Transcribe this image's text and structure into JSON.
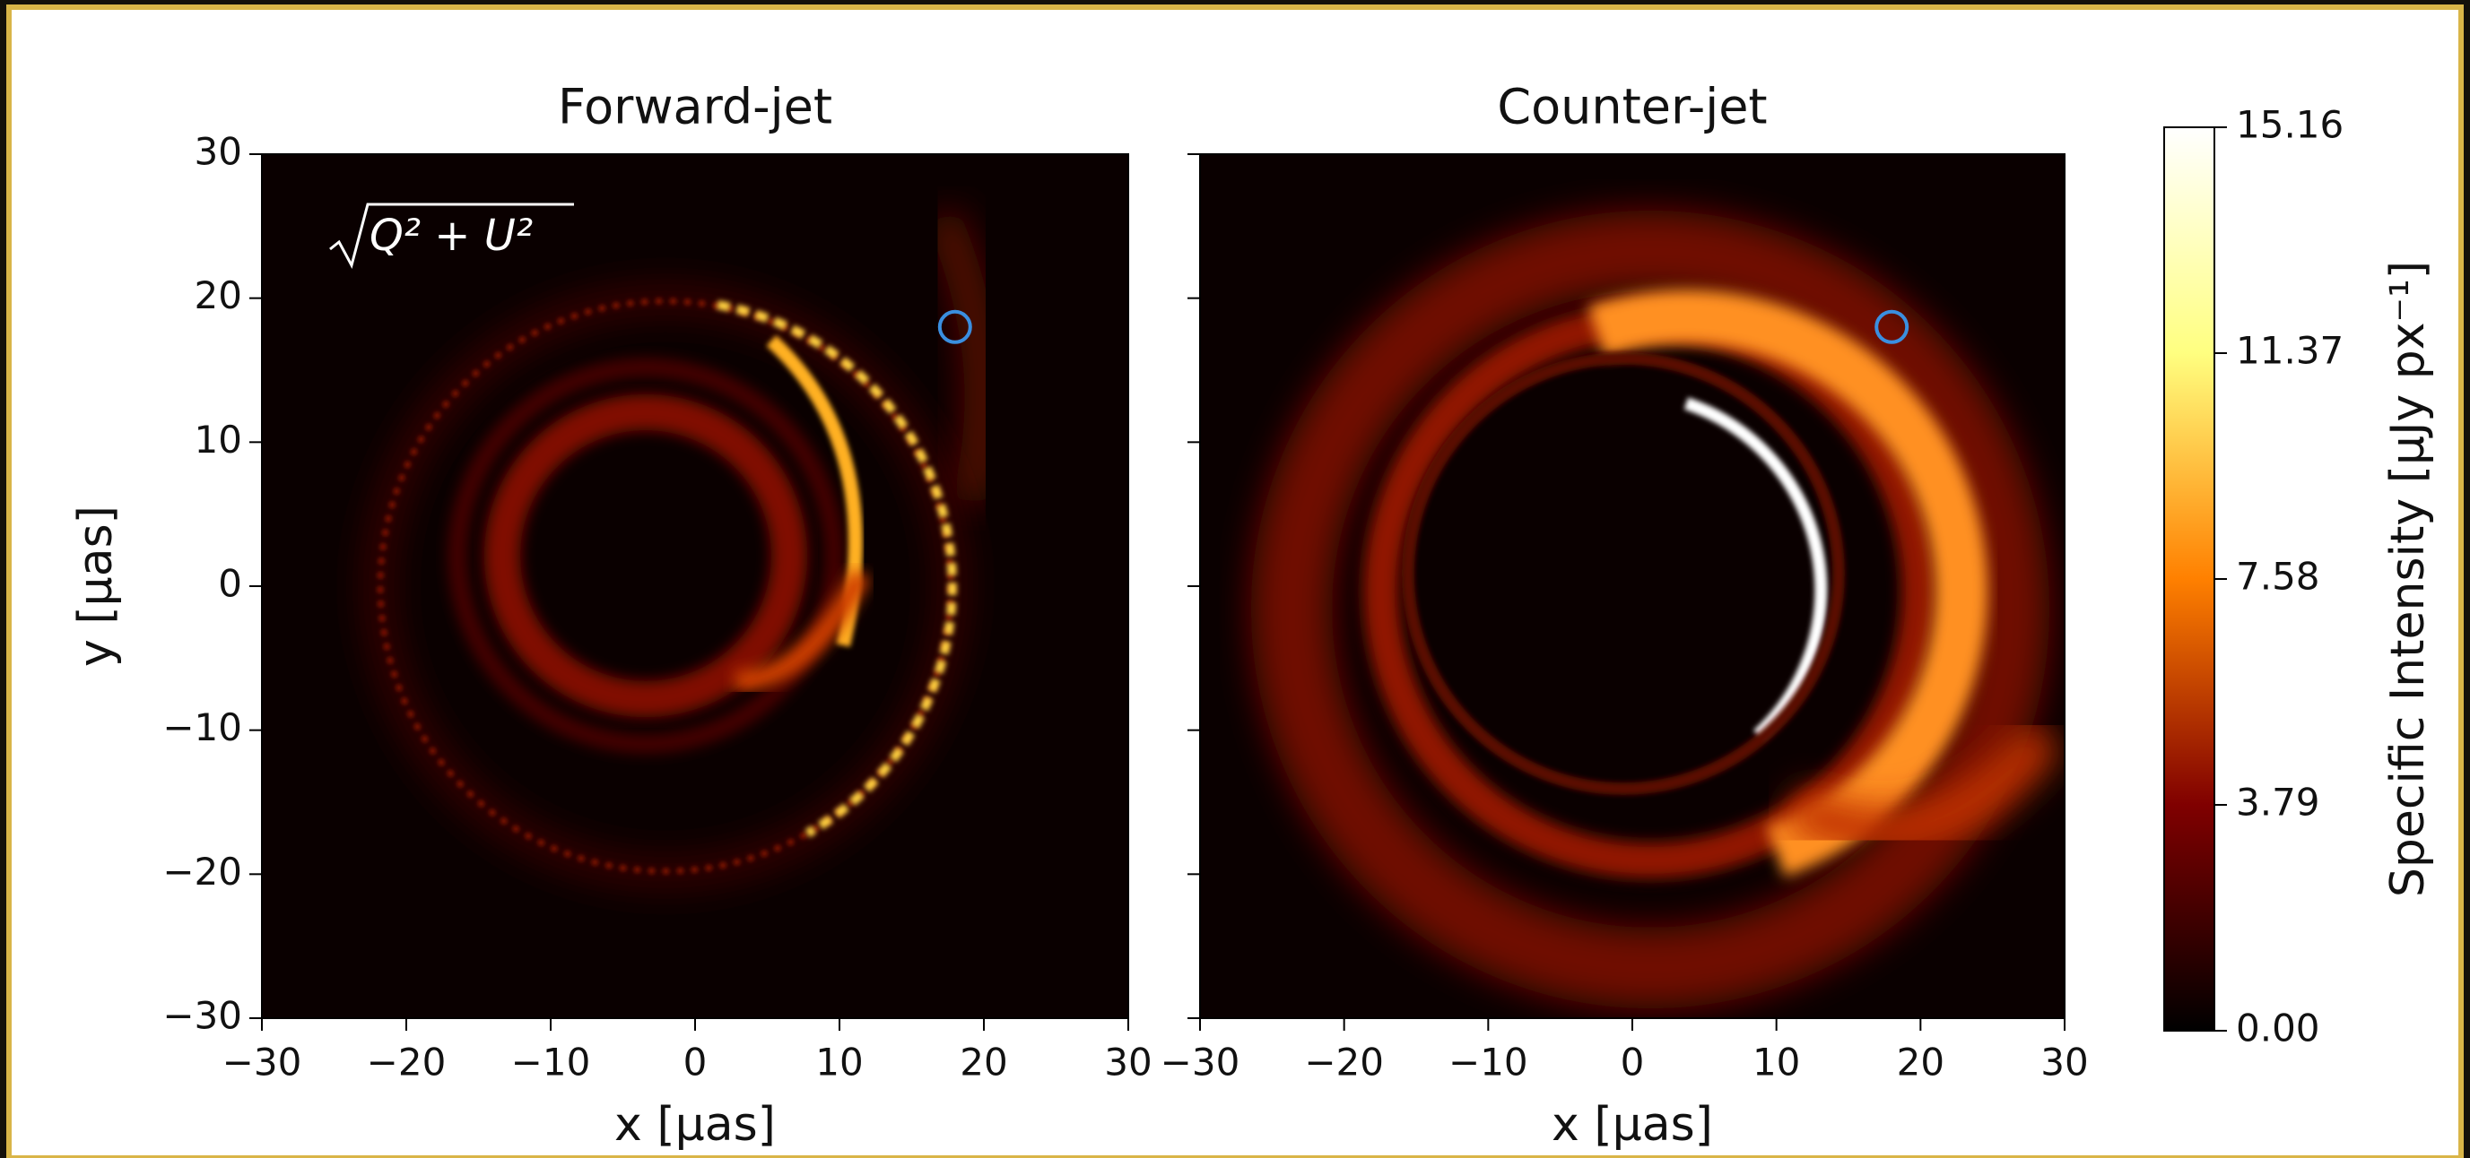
{
  "chart_data": [
    {
      "type": "heatmap",
      "title": "Forward-jet",
      "annotation": "Q² + U²",
      "xlabel": "x [μas]",
      "ylabel": "y [μas]",
      "xlim": [
        -30,
        30
      ],
      "ylim": [
        -30,
        30
      ],
      "xticks": [
        {
          "value": -30,
          "label": "−30"
        },
        {
          "value": -20,
          "label": "−20"
        },
        {
          "value": -10,
          "label": "−10"
        },
        0,
        10,
        20,
        30
      ],
      "yticks": [
        {
          "value": -30,
          "label": "−30"
        },
        {
          "value": -20,
          "label": "−20"
        },
        {
          "value": -10,
          "label": "−10"
        },
        0,
        10,
        20,
        30
      ],
      "marker": {
        "x": 18,
        "y": 18,
        "color": "#3a8fe0"
      }
    },
    {
      "type": "heatmap",
      "title": "Counter-jet",
      "xlabel": "x [μas]",
      "xlim": [
        -30,
        30
      ],
      "ylim": [
        -30,
        30
      ],
      "xticks": [
        {
          "value": -30,
          "label": "−30"
        },
        {
          "value": -20,
          "label": "−20"
        },
        {
          "value": -10,
          "label": "−10"
        },
        0,
        10,
        20,
        30
      ],
      "yticks": [
        -30,
        -20,
        -10,
        0,
        10,
        20,
        30
      ],
      "marker": {
        "x": 18,
        "y": 18,
        "color": "#3a8fe0"
      },
      "colorbar": {
        "label": "Specific Intensity [μJy px⁻¹]",
        "lim": [
          0,
          15.16
        ],
        "ticks": [
          {
            "value": 0,
            "label": "0.00"
          },
          3.79,
          7.58,
          11.37,
          15.16
        ]
      }
    }
  ]
}
